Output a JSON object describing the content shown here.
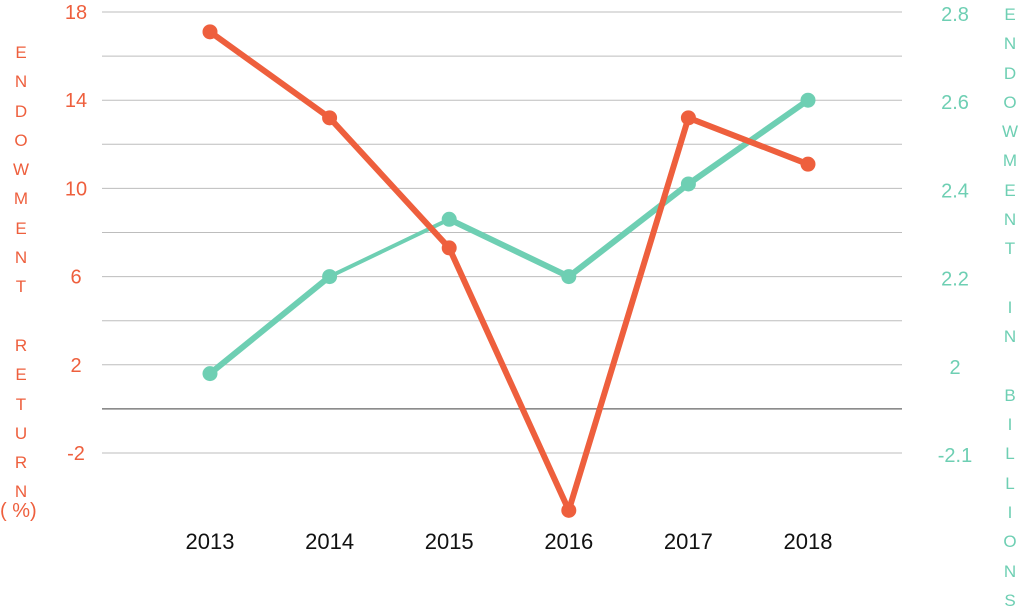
{
  "chart_data": {
    "type": "line",
    "categories": [
      "2013",
      "2014",
      "2015",
      "2016",
      "2017",
      "2018"
    ],
    "left_axis": {
      "label": "ENDOWMENT RETURN",
      "unit_label": "( %)",
      "ticks": [
        "18",
        "14",
        "10",
        "6",
        "2",
        "-2"
      ],
      "color": "#ee5f3d"
    },
    "right_axis": {
      "label": "ENDOWMENT IN BILLIONS",
      "ticks": [
        "2.8",
        "2.6",
        "2.4",
        "2.2",
        "2",
        "-2.1"
      ],
      "color": "#6ecfb3"
    },
    "series": [
      {
        "axis": "left",
        "color": "#ee5f3d",
        "values": [
          17.1,
          13.2,
          7.3,
          -4.6,
          13.2,
          11.1
        ]
      },
      {
        "axis": "right",
        "color": "#6ecfb3",
        "values": [
          1.98,
          2.2,
          2.33,
          2.2,
          2.41,
          2.6
        ]
      }
    ],
    "grid": true
  }
}
